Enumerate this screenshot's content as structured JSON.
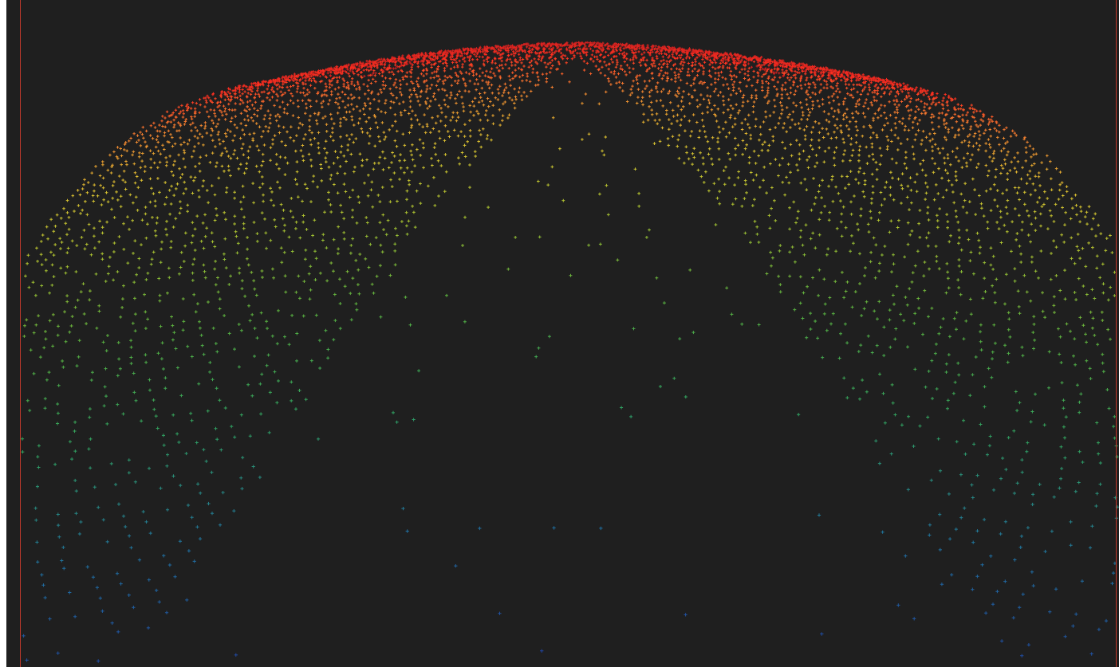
{
  "viewport": {
    "background_color": "#1f1f1f",
    "guide_line_color": "#c0392b"
  },
  "point_cloud": {
    "colormap": [
      "#d02020",
      "#ff3020",
      "#f08030",
      "#d8c030",
      "#a8c030",
      "#58b040",
      "#30a060",
      "#2070a0",
      "#2040a0"
    ],
    "colormap_direction": "far-to-near",
    "point_glyph": "small-cross"
  }
}
